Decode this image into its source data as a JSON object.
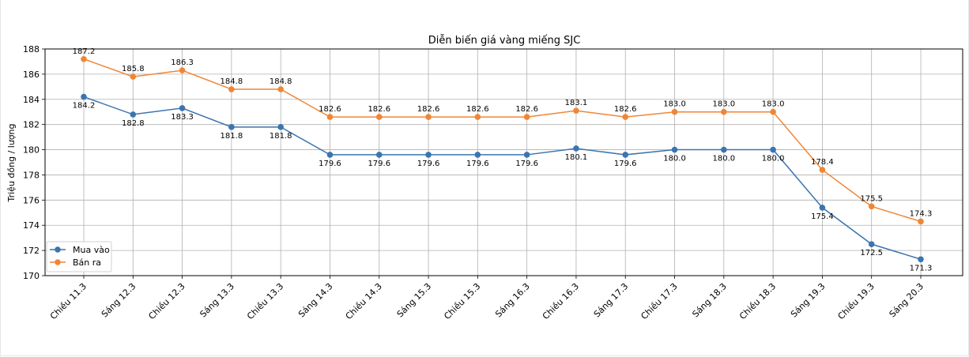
{
  "chart_data": {
    "type": "line",
    "title": "Diễn biến giá vàng miếng SJC",
    "xlabel": "",
    "ylabel": "Triệu đồng / lượng",
    "ylim": [
      170,
      188
    ],
    "yticks": [
      170,
      172,
      174,
      176,
      178,
      180,
      182,
      184,
      186,
      188
    ],
    "grid": true,
    "legend_position": "lower-left",
    "categories": [
      "Chiều 11.3",
      "Sáng 12.3",
      "Chiều 12.3",
      "Sáng 13.3",
      "Chiều 13.3",
      "Sáng 14.3",
      "Chiều 14.3",
      "Sáng 15.3",
      "Chiều 15.3",
      "Sáng 16.3",
      "Chiều 16.3",
      "Sáng 17.3",
      "Chiều 17.3",
      "Sáng 18.3",
      "Chiều 18.3",
      "Sáng 19.3",
      "Chiều 19.3",
      "Sáng 20.3"
    ],
    "series": [
      {
        "name": "Mua vào",
        "color": "#3b75af",
        "label_position": "below",
        "values": [
          184.2,
          182.8,
          183.3,
          181.8,
          181.8,
          179.6,
          179.6,
          179.6,
          179.6,
          179.6,
          180.1,
          179.6,
          180.0,
          180.0,
          180.0,
          175.4,
          172.5,
          171.3
        ]
      },
      {
        "name": "Bán ra",
        "color": "#ef8636",
        "label_position": "above",
        "values": [
          187.2,
          185.8,
          186.3,
          184.8,
          184.8,
          182.6,
          182.6,
          182.6,
          182.6,
          182.6,
          183.1,
          182.6,
          183.0,
          183.0,
          183.0,
          178.4,
          175.5,
          174.3
        ]
      }
    ]
  }
}
